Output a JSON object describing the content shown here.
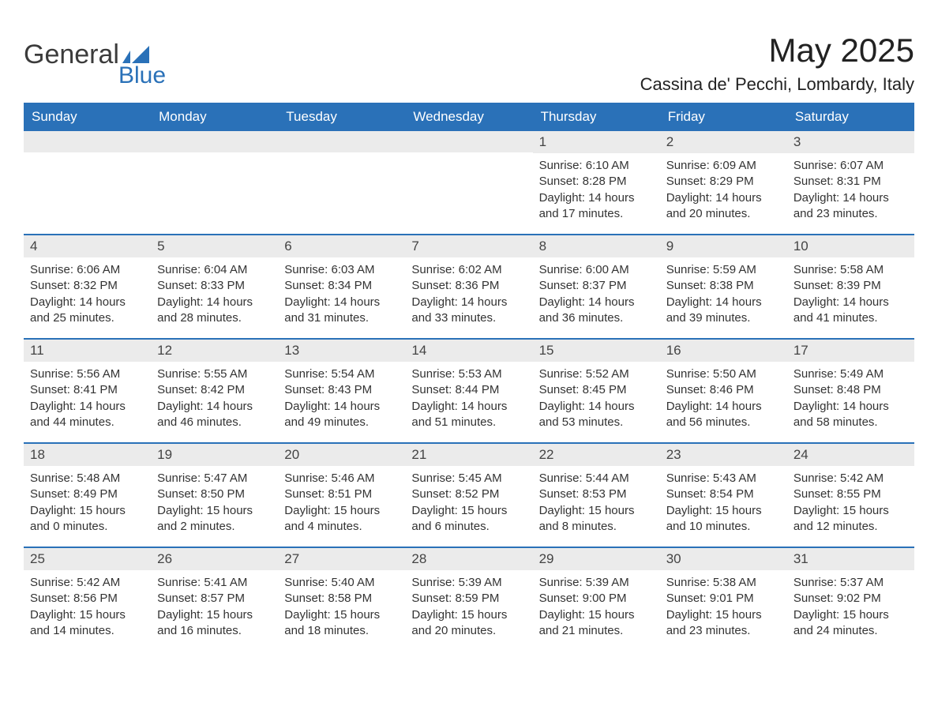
{
  "brand": {
    "word1": "General",
    "word2": "Blue"
  },
  "title": "May 2025",
  "location": "Cassina de' Pecchi, Lombardy, Italy",
  "colors": {
    "accent": "#2a71b8",
    "header_bg": "#2a71b8",
    "header_text": "#ffffff",
    "daynum_bg": "#ebebeb",
    "text": "#333333",
    "background": "#ffffff"
  },
  "days_of_week": [
    "Sunday",
    "Monday",
    "Tuesday",
    "Wednesday",
    "Thursday",
    "Friday",
    "Saturday"
  ],
  "weeks": [
    [
      {
        "empty": true
      },
      {
        "empty": true
      },
      {
        "empty": true
      },
      {
        "empty": true
      },
      {
        "n": "1",
        "sunrise": "Sunrise: 6:10 AM",
        "sunset": "Sunset: 8:28 PM",
        "daylight": "Daylight: 14 hours and 17 minutes."
      },
      {
        "n": "2",
        "sunrise": "Sunrise: 6:09 AM",
        "sunset": "Sunset: 8:29 PM",
        "daylight": "Daylight: 14 hours and 20 minutes."
      },
      {
        "n": "3",
        "sunrise": "Sunrise: 6:07 AM",
        "sunset": "Sunset: 8:31 PM",
        "daylight": "Daylight: 14 hours and 23 minutes."
      }
    ],
    [
      {
        "n": "4",
        "sunrise": "Sunrise: 6:06 AM",
        "sunset": "Sunset: 8:32 PM",
        "daylight": "Daylight: 14 hours and 25 minutes."
      },
      {
        "n": "5",
        "sunrise": "Sunrise: 6:04 AM",
        "sunset": "Sunset: 8:33 PM",
        "daylight": "Daylight: 14 hours and 28 minutes."
      },
      {
        "n": "6",
        "sunrise": "Sunrise: 6:03 AM",
        "sunset": "Sunset: 8:34 PM",
        "daylight": "Daylight: 14 hours and 31 minutes."
      },
      {
        "n": "7",
        "sunrise": "Sunrise: 6:02 AM",
        "sunset": "Sunset: 8:36 PM",
        "daylight": "Daylight: 14 hours and 33 minutes."
      },
      {
        "n": "8",
        "sunrise": "Sunrise: 6:00 AM",
        "sunset": "Sunset: 8:37 PM",
        "daylight": "Daylight: 14 hours and 36 minutes."
      },
      {
        "n": "9",
        "sunrise": "Sunrise: 5:59 AM",
        "sunset": "Sunset: 8:38 PM",
        "daylight": "Daylight: 14 hours and 39 minutes."
      },
      {
        "n": "10",
        "sunrise": "Sunrise: 5:58 AM",
        "sunset": "Sunset: 8:39 PM",
        "daylight": "Daylight: 14 hours and 41 minutes."
      }
    ],
    [
      {
        "n": "11",
        "sunrise": "Sunrise: 5:56 AM",
        "sunset": "Sunset: 8:41 PM",
        "daylight": "Daylight: 14 hours and 44 minutes."
      },
      {
        "n": "12",
        "sunrise": "Sunrise: 5:55 AM",
        "sunset": "Sunset: 8:42 PM",
        "daylight": "Daylight: 14 hours and 46 minutes."
      },
      {
        "n": "13",
        "sunrise": "Sunrise: 5:54 AM",
        "sunset": "Sunset: 8:43 PM",
        "daylight": "Daylight: 14 hours and 49 minutes."
      },
      {
        "n": "14",
        "sunrise": "Sunrise: 5:53 AM",
        "sunset": "Sunset: 8:44 PM",
        "daylight": "Daylight: 14 hours and 51 minutes."
      },
      {
        "n": "15",
        "sunrise": "Sunrise: 5:52 AM",
        "sunset": "Sunset: 8:45 PM",
        "daylight": "Daylight: 14 hours and 53 minutes."
      },
      {
        "n": "16",
        "sunrise": "Sunrise: 5:50 AM",
        "sunset": "Sunset: 8:46 PM",
        "daylight": "Daylight: 14 hours and 56 minutes."
      },
      {
        "n": "17",
        "sunrise": "Sunrise: 5:49 AM",
        "sunset": "Sunset: 8:48 PM",
        "daylight": "Daylight: 14 hours and 58 minutes."
      }
    ],
    [
      {
        "n": "18",
        "sunrise": "Sunrise: 5:48 AM",
        "sunset": "Sunset: 8:49 PM",
        "daylight": "Daylight: 15 hours and 0 minutes."
      },
      {
        "n": "19",
        "sunrise": "Sunrise: 5:47 AM",
        "sunset": "Sunset: 8:50 PM",
        "daylight": "Daylight: 15 hours and 2 minutes."
      },
      {
        "n": "20",
        "sunrise": "Sunrise: 5:46 AM",
        "sunset": "Sunset: 8:51 PM",
        "daylight": "Daylight: 15 hours and 4 minutes."
      },
      {
        "n": "21",
        "sunrise": "Sunrise: 5:45 AM",
        "sunset": "Sunset: 8:52 PM",
        "daylight": "Daylight: 15 hours and 6 minutes."
      },
      {
        "n": "22",
        "sunrise": "Sunrise: 5:44 AM",
        "sunset": "Sunset: 8:53 PM",
        "daylight": "Daylight: 15 hours and 8 minutes."
      },
      {
        "n": "23",
        "sunrise": "Sunrise: 5:43 AM",
        "sunset": "Sunset: 8:54 PM",
        "daylight": "Daylight: 15 hours and 10 minutes."
      },
      {
        "n": "24",
        "sunrise": "Sunrise: 5:42 AM",
        "sunset": "Sunset: 8:55 PM",
        "daylight": "Daylight: 15 hours and 12 minutes."
      }
    ],
    [
      {
        "n": "25",
        "sunrise": "Sunrise: 5:42 AM",
        "sunset": "Sunset: 8:56 PM",
        "daylight": "Daylight: 15 hours and 14 minutes."
      },
      {
        "n": "26",
        "sunrise": "Sunrise: 5:41 AM",
        "sunset": "Sunset: 8:57 PM",
        "daylight": "Daylight: 15 hours and 16 minutes."
      },
      {
        "n": "27",
        "sunrise": "Sunrise: 5:40 AM",
        "sunset": "Sunset: 8:58 PM",
        "daylight": "Daylight: 15 hours and 18 minutes."
      },
      {
        "n": "28",
        "sunrise": "Sunrise: 5:39 AM",
        "sunset": "Sunset: 8:59 PM",
        "daylight": "Daylight: 15 hours and 20 minutes."
      },
      {
        "n": "29",
        "sunrise": "Sunrise: 5:39 AM",
        "sunset": "Sunset: 9:00 PM",
        "daylight": "Daylight: 15 hours and 21 minutes."
      },
      {
        "n": "30",
        "sunrise": "Sunrise: 5:38 AM",
        "sunset": "Sunset: 9:01 PM",
        "daylight": "Daylight: 15 hours and 23 minutes."
      },
      {
        "n": "31",
        "sunrise": "Sunrise: 5:37 AM",
        "sunset": "Sunset: 9:02 PM",
        "daylight": "Daylight: 15 hours and 24 minutes."
      }
    ]
  ]
}
